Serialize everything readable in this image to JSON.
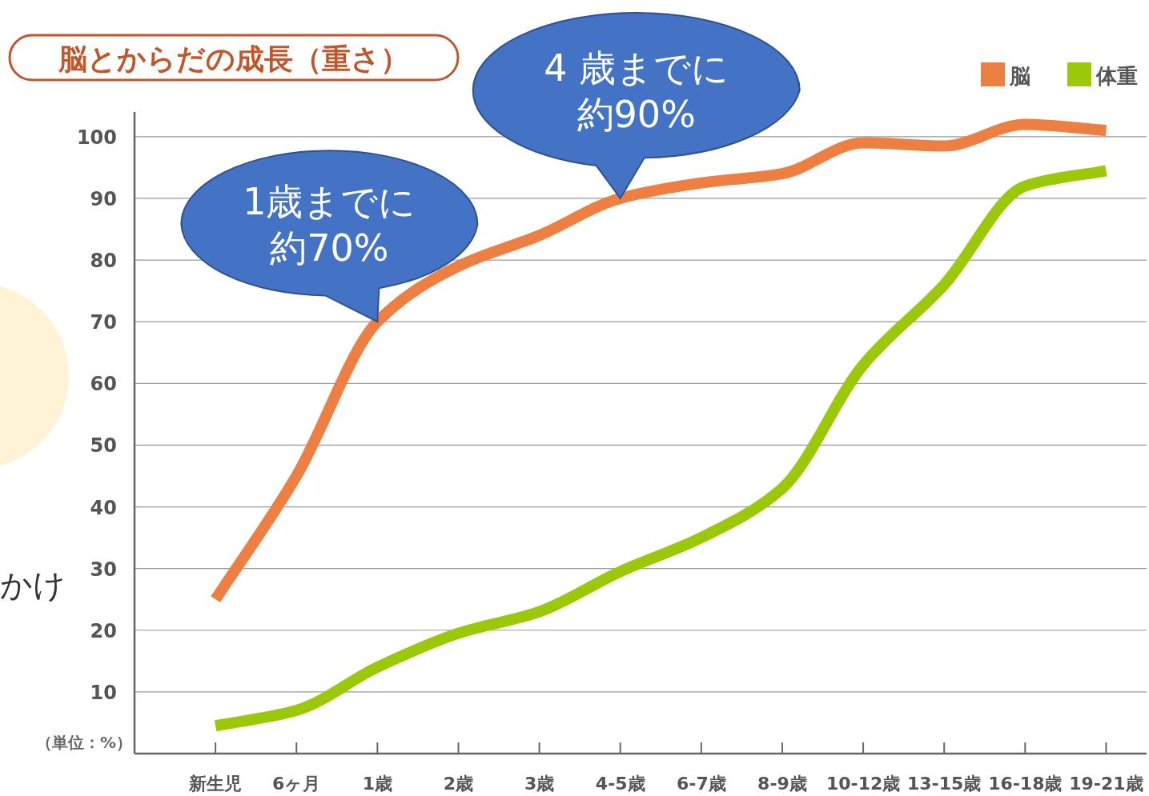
{
  "chart_data": {
    "type": "line",
    "title": "脳とからだの成長（重さ）",
    "categories": [
      "新生児",
      "6ヶ月",
      "1歳",
      "2歳",
      "3歳",
      "4-5歳",
      "6-7歳",
      "8-9歳",
      "10-12歳",
      "13-15歳",
      "16-18歳",
      "19-21歳"
    ],
    "series": [
      {
        "name": "脳",
        "color": "#ee7f42",
        "values": [
          25,
          45,
          70,
          79,
          84,
          90,
          92.5,
          94,
          99,
          98.5,
          102,
          101
        ]
      },
      {
        "name": "体重",
        "color": "#9bc90a",
        "values": [
          4.5,
          7,
          14,
          19.5,
          23,
          29.5,
          35,
          43,
          63,
          76,
          92,
          94.5
        ]
      }
    ],
    "ylim": [
      0,
      104
    ],
    "yticks": [
      10,
      20,
      30,
      40,
      50,
      60,
      70,
      80,
      90,
      100
    ],
    "grid": "y",
    "legend": "top right",
    "marker": "none",
    "line_style": "solid",
    "annotations": [
      {
        "text": "1歳までに",
        "x": "1歳",
        "y": 70
      },
      {
        "text": "約70%",
        "x": "1歳",
        "y": 70
      },
      {
        "text": "4 歳までに",
        "x": "4-5歳",
        "y": 90
      },
      {
        "text": "約90%",
        "x": "4-5歳",
        "y": 90
      },
      "（単位：%）",
      "かけ"
    ]
  }
}
